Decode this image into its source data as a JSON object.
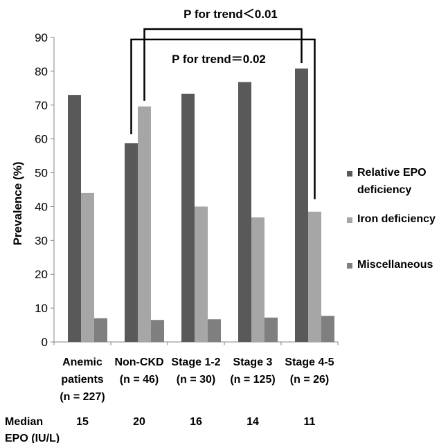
{
  "chart_data": {
    "type": "bar",
    "title": "",
    "xlabel": "",
    "ylabel": "Prevalence (%)",
    "ylim": [
      0,
      90
    ],
    "yticks": [
      0,
      10,
      20,
      30,
      40,
      50,
      60,
      70,
      80,
      90
    ],
    "grid": false,
    "legend_position": "right",
    "categories": [
      [
        "Anemic",
        "patients",
        "(n = 227)"
      ],
      [
        "Non-CKD",
        "(n = 46)"
      ],
      [
        "Stage 1-2",
        "(n = 30)"
      ],
      [
        "Stage 3",
        "(n = 125)"
      ],
      [
        "Stage 4-5",
        "(n = 26)"
      ]
    ],
    "series": [
      {
        "name": [
          "Relative EPO",
          "deficiency"
        ],
        "color": "#595959",
        "values": [
          73,
          58.7,
          73.3,
          76.8,
          80.8
        ]
      },
      {
        "name": [
          "Iron deficiency"
        ],
        "color": "#a6a6a6",
        "values": [
          44,
          69.6,
          40,
          36.8,
          38.5
        ]
      },
      {
        "name": [
          "Miscellaneous"
        ],
        "color": "#7f7f7f",
        "values": [
          7,
          6.5,
          6.7,
          7.2,
          7.7
        ]
      }
    ],
    "annotations": [
      {
        "label": "P for trend＜0.01",
        "from_category": 1,
        "to_category": 4
      },
      {
        "label": "P for trend＝0.02",
        "from_category": 1,
        "to_category": 4
      }
    ],
    "footer": {
      "label_line1": "Median",
      "label_line2": "EPO (IU/L)",
      "values": [
        "15",
        "20",
        "16",
        "14",
        "11"
      ]
    }
  }
}
